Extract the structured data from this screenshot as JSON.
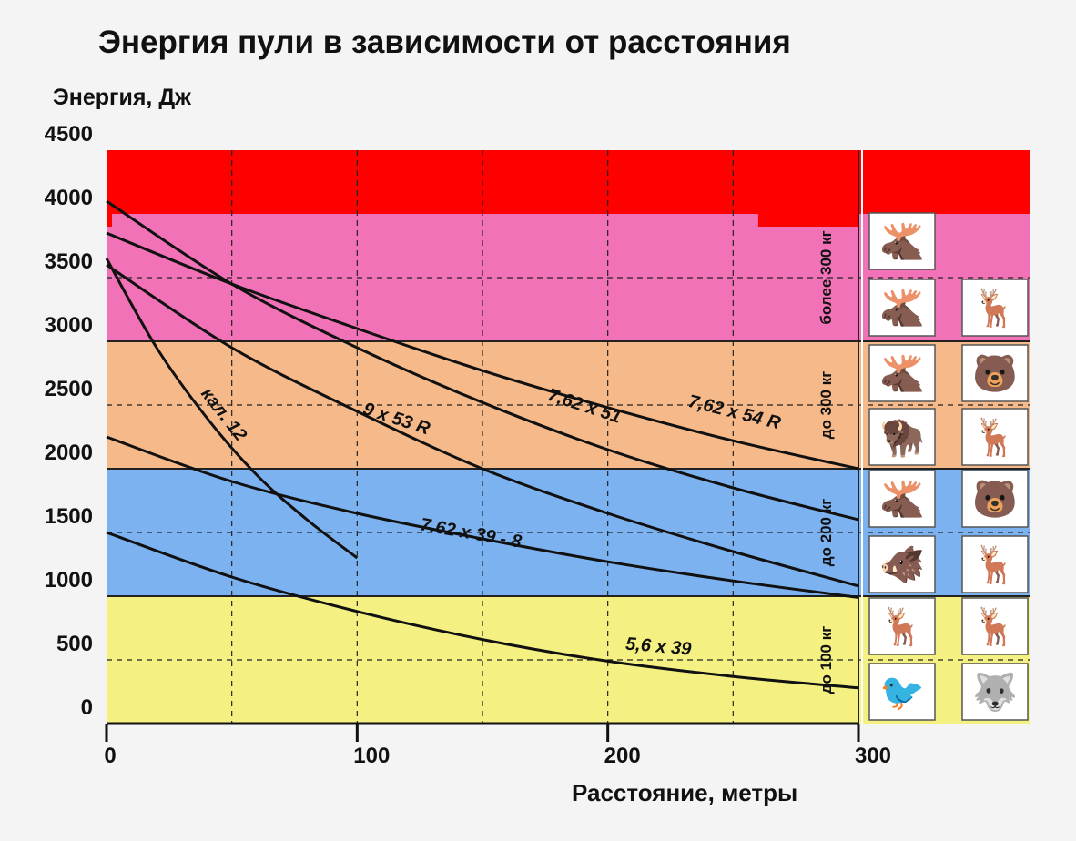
{
  "chart_data": {
    "type": "line",
    "title": "Энергия пули в зависимости от расстояния",
    "ylabel": "Энергия, Дж",
    "xlabel": "Расстояние, метры",
    "xlim": [
      0,
      300
    ],
    "ylim": [
      0,
      4500
    ],
    "x_ticks": [
      "0",
      "100",
      "200",
      "300"
    ],
    "y_ticks": [
      "0",
      "500",
      "1000",
      "1500",
      "2000",
      "2500",
      "3000",
      "3500",
      "4000",
      "4500"
    ],
    "grid": "dashed",
    "colors": {
      "zone_top": "#ff0000",
      "zone_300_plus": "#f272b8",
      "zone_300": "#f6b98a",
      "zone_200": "#7db2f0",
      "zone_100": "#f5f082",
      "line": "#111111"
    },
    "zones": [
      {
        "label": "",
        "from": 4000,
        "to": 4500,
        "color": "#ff0000"
      },
      {
        "label": "более 300 кг",
        "from": 3000,
        "to": 4000,
        "color": "#f272b8"
      },
      {
        "label": "до 300 кг",
        "from": 2000,
        "to": 3000,
        "color": "#f6b98a"
      },
      {
        "label": "до 200 кг",
        "from": 1000,
        "to": 2000,
        "color": "#7db2f0"
      },
      {
        "label": "до 100 кг",
        "from": 0,
        "to": 1000,
        "color": "#f5f082"
      }
    ],
    "series": [
      {
        "name": "кал. 12",
        "x": [
          0,
          20,
          40,
          60,
          80,
          100
        ],
        "y": [
          3650,
          2950,
          2400,
          1950,
          1600,
          1300
        ]
      },
      {
        "name": "9 x 53 R",
        "x": [
          0,
          50,
          100,
          150,
          200,
          250,
          300
        ],
        "y": [
          3600,
          2950,
          2450,
          2000,
          1650,
          1350,
          1080
        ]
      },
      {
        "name": "7,62 x 51",
        "x": [
          0,
          50,
          100,
          150,
          200,
          250,
          300
        ],
        "y": [
          4100,
          3450,
          2950,
          2520,
          2150,
          1850,
          1600
        ]
      },
      {
        "name": "7,62 x 54 R",
        "x": [
          0,
          50,
          100,
          150,
          200,
          250,
          300
        ],
        "y": [
          3850,
          3450,
          3100,
          2770,
          2480,
          2220,
          2000
        ]
      },
      {
        "name": "7.62 x 39 - 8",
        "x": [
          0,
          50,
          100,
          150,
          200,
          250,
          300
        ],
        "y": [
          2250,
          1900,
          1650,
          1450,
          1270,
          1120,
          990
        ]
      },
      {
        "name": "5,6 x 39",
        "x": [
          0,
          50,
          100,
          150,
          200,
          250,
          300
        ],
        "y": [
          1500,
          1150,
          880,
          660,
          490,
          370,
          280
        ]
      }
    ],
    "curve_labels": [
      {
        "text": "кал. 12",
        "x": 45,
        "y": 2400,
        "angle": 52
      },
      {
        "text": "9 x 53 R",
        "x": 115,
        "y": 2350,
        "angle": 18
      },
      {
        "text": "7,62 x 51",
        "x": 190,
        "y": 2450,
        "angle": 18
      },
      {
        "text": "7,62 x 54 R",
        "x": 250,
        "y": 2400,
        "angle": 14
      },
      {
        "text": "7.62 x 39 - 8",
        "x": 145,
        "y": 1450,
        "angle": 10
      },
      {
        "text": "5,6 x 39",
        "x": 220,
        "y": 560,
        "angle": 5
      }
    ]
  },
  "icons": [
    {
      "name": "moose-icon",
      "glyph": "🫎"
    },
    {
      "name": "moose-icon",
      "glyph": "🫎"
    },
    {
      "name": "deer-icon",
      "glyph": "🦌"
    },
    {
      "name": "moose-icon",
      "glyph": "🫎"
    },
    {
      "name": "bear-icon",
      "glyph": "🐻"
    },
    {
      "name": "bison-icon",
      "glyph": "🦬"
    },
    {
      "name": "deer-icon",
      "glyph": "🦌"
    },
    {
      "name": "moose-icon",
      "glyph": "🫎"
    },
    {
      "name": "bear-icon",
      "glyph": "🐻"
    },
    {
      "name": "boar-icon",
      "glyph": "🐗"
    },
    {
      "name": "deer-icon",
      "glyph": "🦌"
    },
    {
      "name": "deer-icon",
      "glyph": "🦌"
    },
    {
      "name": "reindeer-icon",
      "glyph": "🦌"
    },
    {
      "name": "grouse-icon",
      "glyph": "🐦"
    },
    {
      "name": "wolf-icon",
      "glyph": "🐺"
    }
  ]
}
